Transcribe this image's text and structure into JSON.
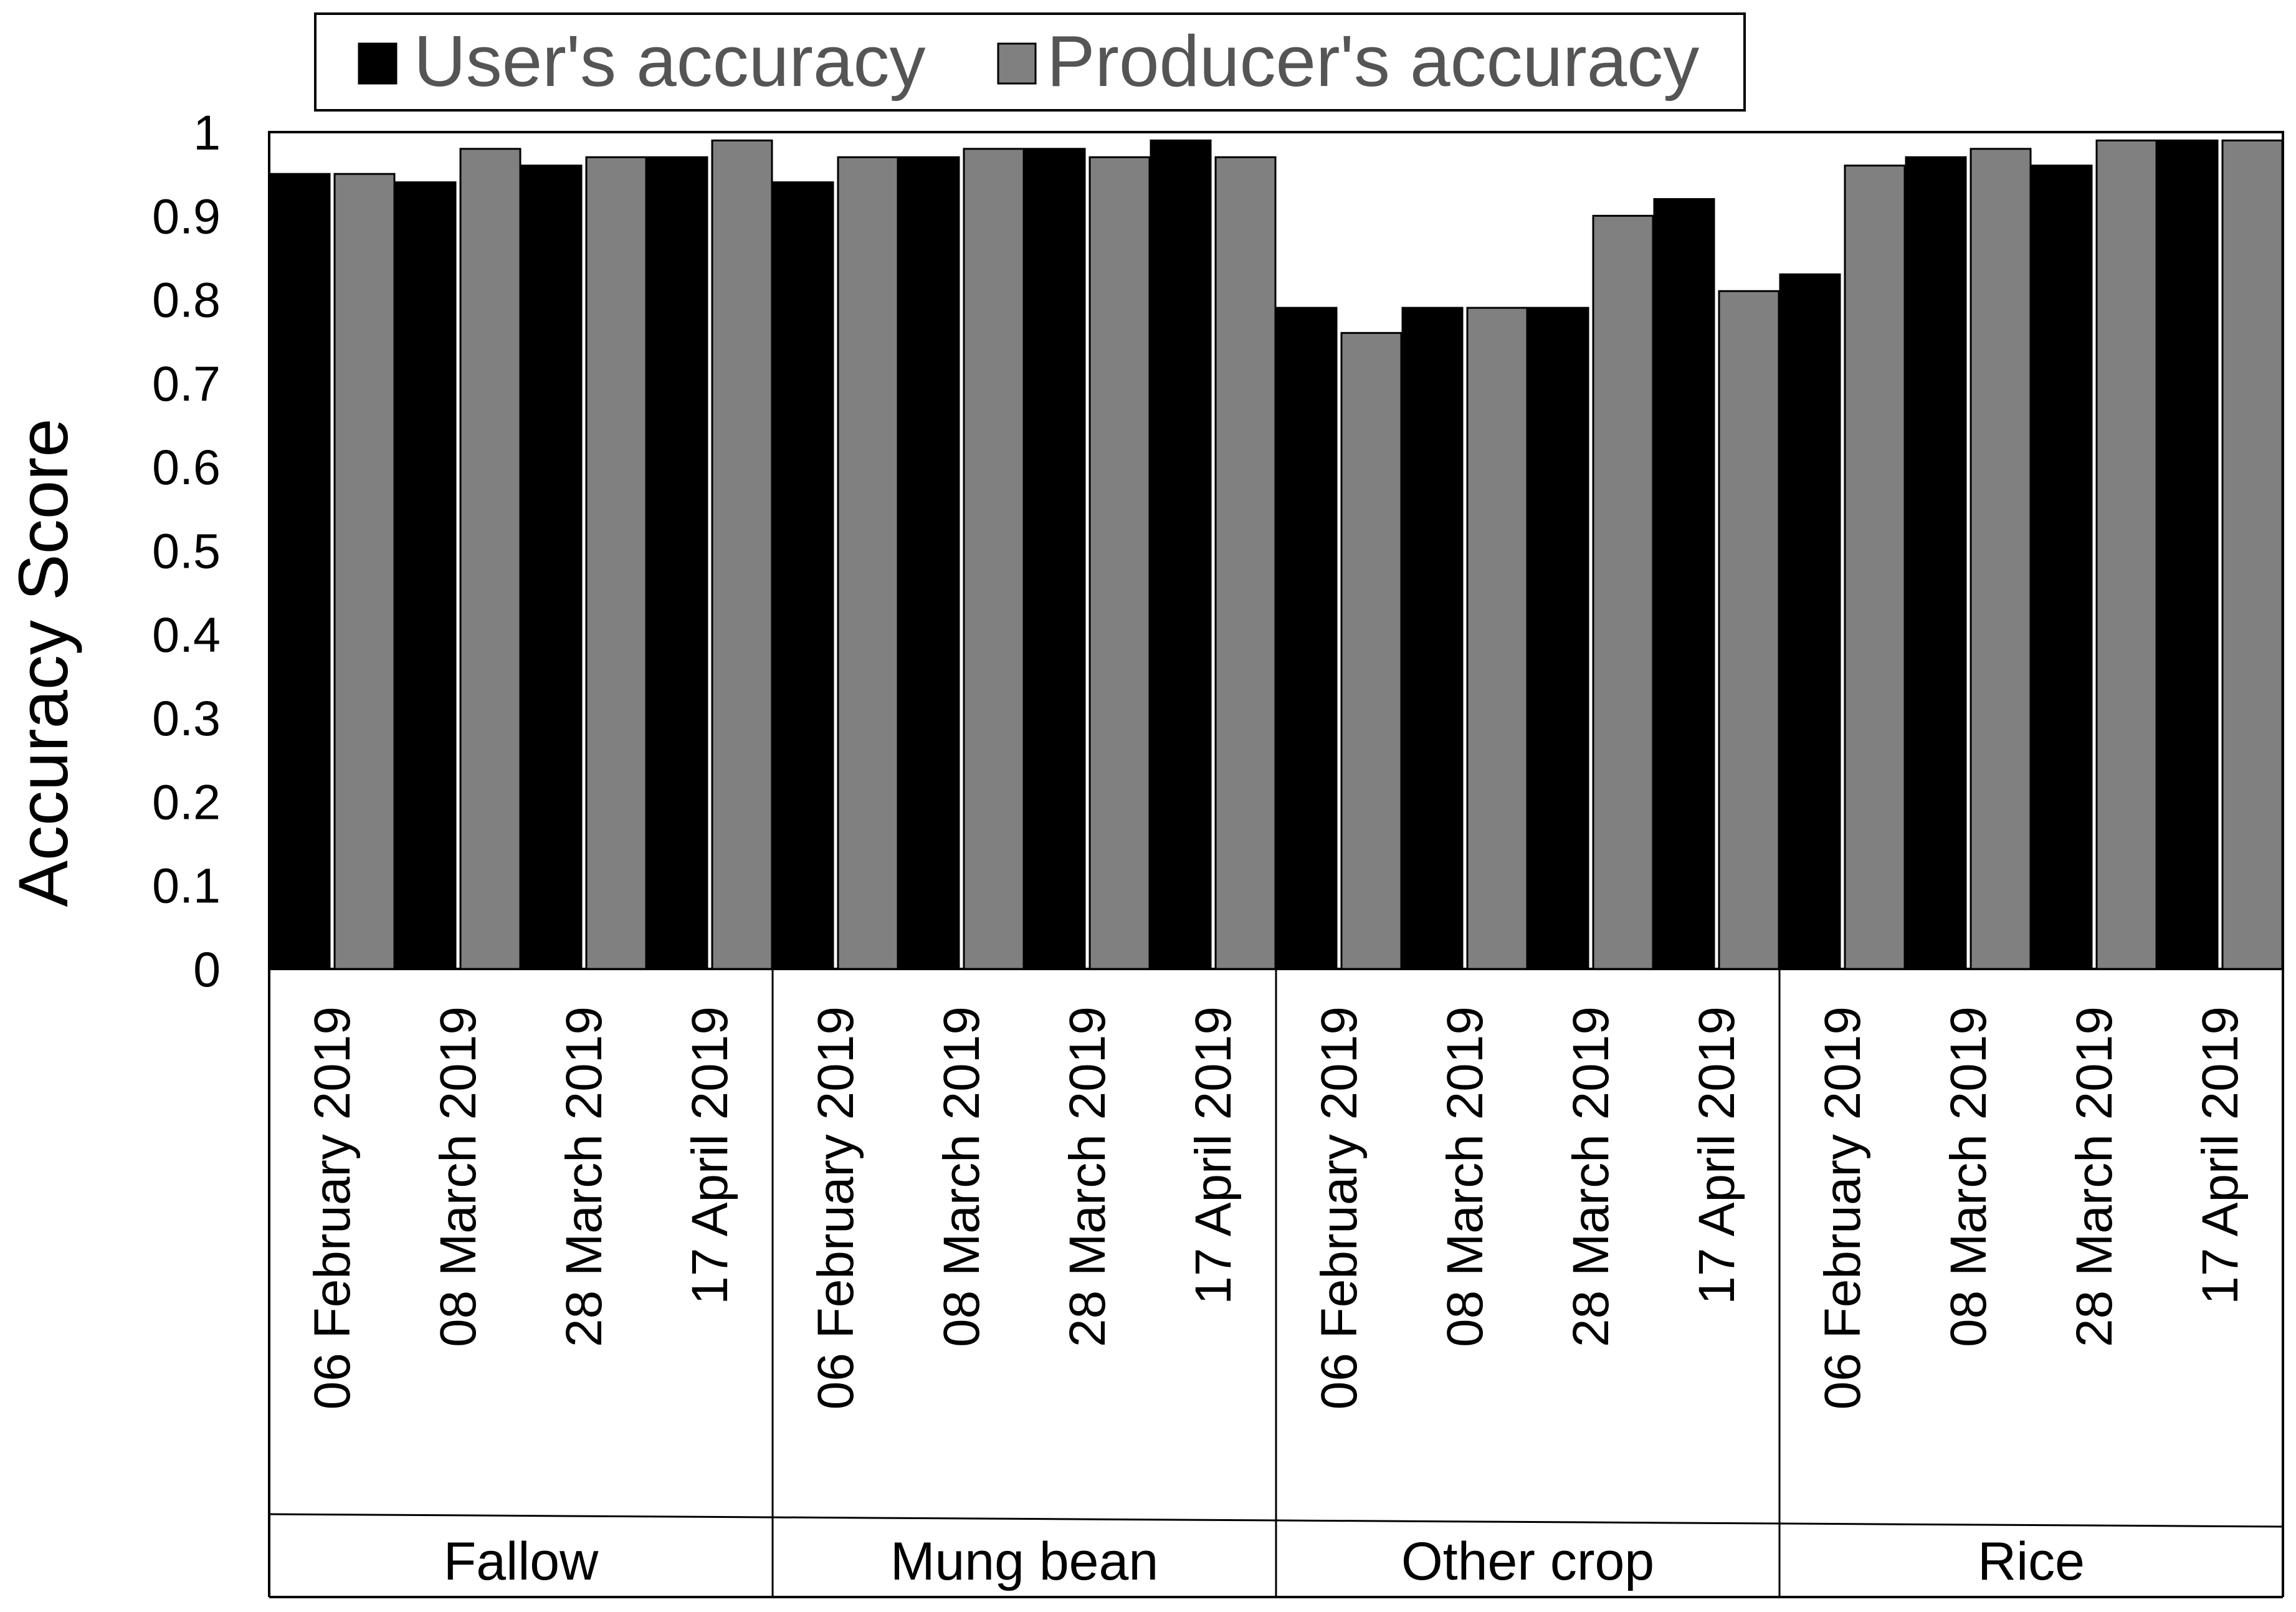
{
  "chart_data": {
    "type": "bar",
    "title": "",
    "xlabel": "",
    "ylabel": "Accuracy Score",
    "ylim": [
      0,
      1
    ],
    "yticks": [
      "0",
      "0.1",
      "0.2",
      "0.3",
      "0.4",
      "0.5",
      "0.6",
      "0.7",
      "0.8",
      "0.9",
      "1"
    ],
    "grid": false,
    "legend_position": "top",
    "groups": [
      "Fallow",
      "Mung bean",
      "Other crop",
      "Rice"
    ],
    "categories": [
      "06 February 2019",
      "08 March 2019",
      "28 March 2019",
      "17 April 2019",
      "06 February 2019",
      "08 March 2019",
      "28 March 2019",
      "17 April 2019",
      "06 February 2019",
      "08 March 2019",
      "28 March 2019",
      "17 April 2019",
      "06 February 2019",
      "08 March 2019",
      "28 March 2019",
      "17 April 2019"
    ],
    "series": [
      {
        "name": "User's accuracy",
        "color": "#000000",
        "values": [
          0.95,
          0.94,
          0.96,
          0.97,
          0.94,
          0.97,
          0.98,
          0.99,
          0.79,
          0.79,
          0.79,
          0.92,
          0.83,
          0.97,
          0.96,
          0.99
        ]
      },
      {
        "name": "Producer's accuracy",
        "color": "#808080",
        "values": [
          0.95,
          0.98,
          0.97,
          0.99,
          0.97,
          0.98,
          0.97,
          0.97,
          0.76,
          0.79,
          0.9,
          0.81,
          0.96,
          0.98,
          0.99,
          0.99
        ]
      }
    ]
  }
}
